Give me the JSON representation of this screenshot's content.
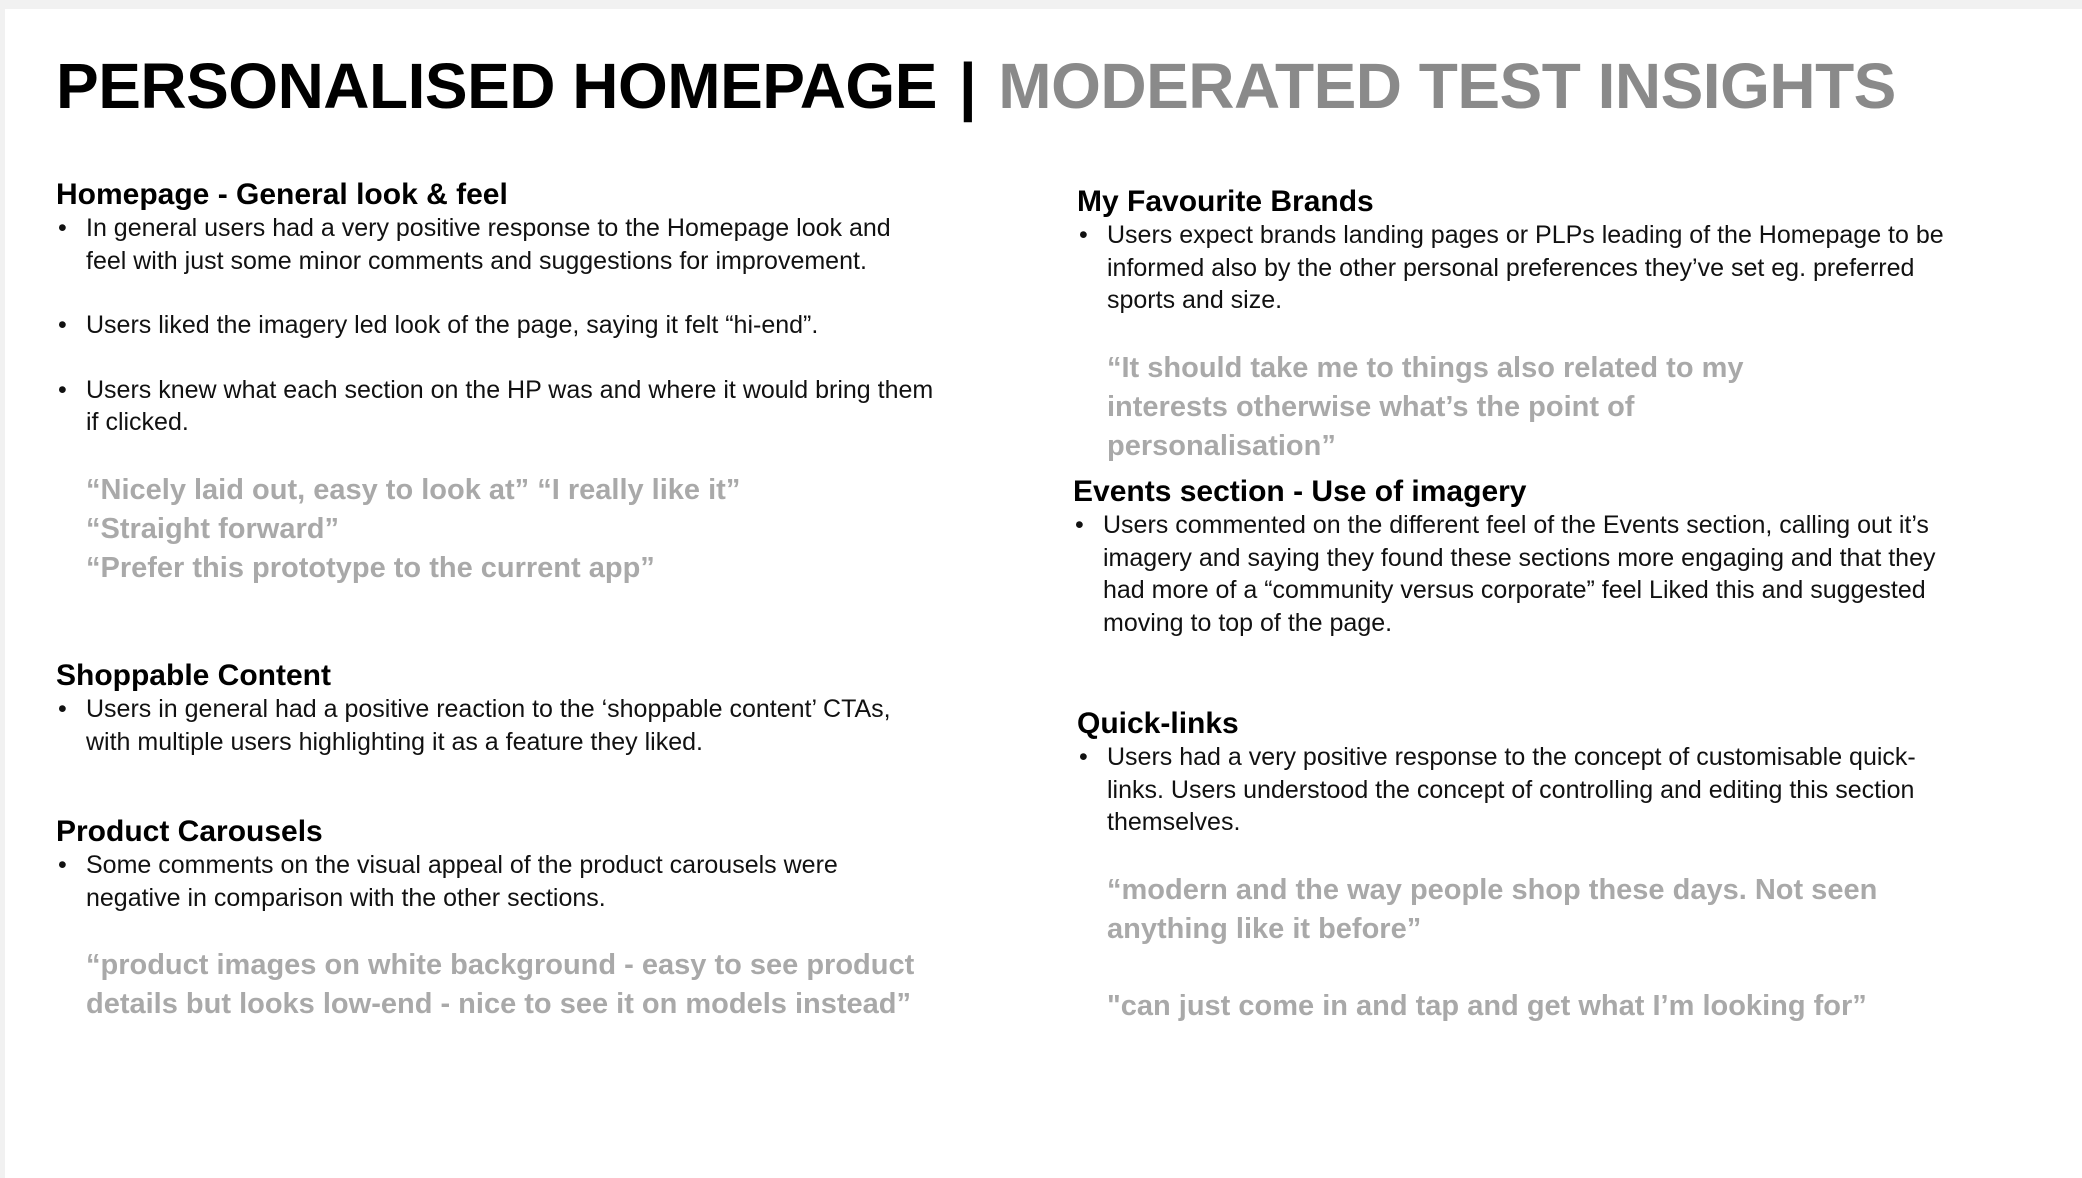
{
  "title": {
    "main": "PERSONALISED HOMEPAGE",
    "separator": "|",
    "sub": "MODERATED TEST INSIGHTS"
  },
  "left_column": {
    "general": {
      "heading": "Homepage - General look & feel",
      "bullets": [
        "In general users had a very positive response to the Homepage look and feel with just some minor comments and suggestions for improvement.",
        "Users liked the imagery led look of the page, saying it felt “hi-end”.",
        "Users knew what each section on the HP was and where it would bring them if clicked."
      ],
      "quotes": [
        "“Nicely laid out, easy to look at”  “I really like it”",
        "“Straight forward”",
        "“Prefer this prototype to the current app”"
      ]
    },
    "shoppable": {
      "heading": "Shoppable Content",
      "bullets": [
        "Users in general had a positive reaction to the ‘shoppable content’ CTAs, with multiple users highlighting it as a feature they liked."
      ]
    },
    "carousels": {
      "heading": "Product Carousels",
      "bullets": [
        "Some comments on the visual appeal of the product carousels were negative in comparison with the other sections."
      ],
      "quotes": [
        "“product images on white background - easy to see product details but looks low-end - nice to see it on models instead”"
      ]
    }
  },
  "right_column": {
    "brands": {
      "heading": "My Favourite Brands",
      "bullets": [
        "Users expect brands landing pages or PLPs leading of the Homepage to be informed also by the other personal preferences they’ve set eg. preferred sports and size."
      ],
      "quotes": [
        "“It should take me to things also related to my interests otherwise what’s the point of personalisation”"
      ]
    },
    "events": {
      "heading": "Events section - Use of imagery",
      "bullets": [
        "Users commented on the different feel of the Events section, calling out it’s imagery and saying they found these sections more engaging and that they had more of a “community versus corporate” feel Liked this and suggested moving to top of the page."
      ]
    },
    "quicklinks": {
      "heading": "Quick-links",
      "bullets": [
        "Users had a very positive response to the concept of customisable quick-links. Users understood the concept of controlling and editing this section themselves."
      ],
      "quotes": [
        "“modern and the way people shop these days. Not seen anything like it before”",
        "\"can just come in and tap and get what I’m looking for”"
      ]
    }
  }
}
